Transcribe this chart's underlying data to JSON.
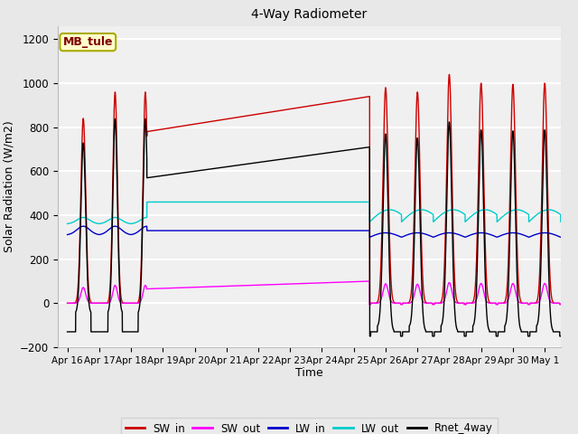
{
  "title": "4-Way Radiometer",
  "xlabel": "Time",
  "ylabel": "Solar Radiation (W/m2)",
  "ylim": [
    -200,
    1260
  ],
  "yticks": [
    -200,
    0,
    200,
    400,
    600,
    800,
    1000,
    1200
  ],
  "annotation_text": "MB_tule",
  "annotation_bg": "#ffffcc",
  "annotation_border": "#aaaa00",
  "annotation_fg": "#800000",
  "fig_bg": "#e8e8e8",
  "plot_bg": "#f0f0f0",
  "grid_color": "#ffffff",
  "colors": {
    "SW_in": "#cc0000",
    "SW_out": "#ff00ff",
    "LW_in": "#0000cc",
    "LW_out": "#00cccc",
    "Rnet_4way": "#000000"
  },
  "xtick_labels": [
    "Apr 16",
    "Apr 17",
    "Apr 18",
    "Apr 19",
    "Apr 20",
    "Apr 21",
    "Apr 22",
    "Apr 23",
    "Apr 24",
    "Apr 25",
    "Apr 26",
    "Apr 27",
    "Apr 28",
    "Apr 29",
    "Apr 30",
    "May 1"
  ],
  "legend_labels": [
    "SW_in",
    "SW_out",
    "LW_in",
    "LW_out",
    "Rnet_4way"
  ]
}
